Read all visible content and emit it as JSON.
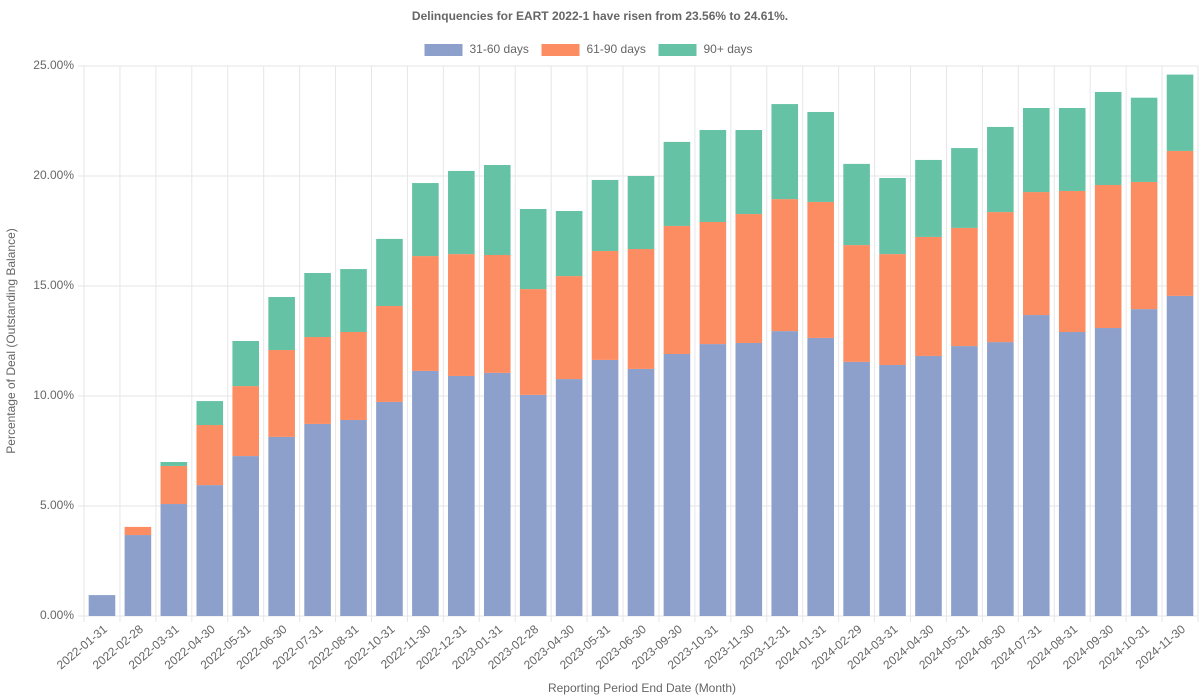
{
  "chart_data": {
    "type": "stacked_bar",
    "title": "Delinquencies for EART 2022-1 have risen from 23.56% to 24.61%.",
    "x_label": "Reporting Period End Date (Month)",
    "y_label": "Percentage of Deal (Outstanding Balance)",
    "categories": [
      "2022-01-31",
      "2022-02-28",
      "2022-03-31",
      "2022-04-30",
      "2022-05-31",
      "2022-06-30",
      "2022-07-31",
      "2022-08-31",
      "2022-10-31",
      "2022-11-30",
      "2022-12-31",
      "2023-01-31",
      "2023-02-28",
      "2023-04-30",
      "2023-05-31",
      "2023-06-30",
      "2023-09-30",
      "2023-10-31",
      "2023-11-30",
      "2023-12-31",
      "2024-01-31",
      "2024-02-29",
      "2024-03-31",
      "2024-04-30",
      "2024-05-31",
      "2024-06-30",
      "2024-07-31",
      "2024-08-31",
      "2024-09-30",
      "2024-10-31",
      "2024-11-30"
    ],
    "series": [
      {
        "name": "31-60 days",
        "color": "#8da0cb",
        "values": [
          0.95,
          3.68,
          5.09,
          5.95,
          7.27,
          8.14,
          8.73,
          8.91,
          9.73,
          11.14,
          10.91,
          11.05,
          10.05,
          10.77,
          11.64,
          11.23,
          11.91,
          12.36,
          12.41,
          12.95,
          12.64,
          11.55,
          11.41,
          11.82,
          12.27,
          12.45,
          13.68,
          12.91,
          13.09,
          13.95,
          14.55
        ]
      },
      {
        "name": "61-90 days",
        "color": "#fc8d62",
        "values": [
          0,
          0.37,
          1.73,
          2.73,
          3.18,
          3.95,
          3.95,
          4.0,
          4.36,
          5.22,
          5.54,
          5.36,
          4.81,
          4.68,
          4.95,
          5.45,
          5.82,
          5.55,
          5.86,
          6.0,
          6.18,
          5.31,
          5.04,
          5.41,
          5.37,
          5.91,
          5.59,
          6.41,
          6.5,
          5.78,
          6.59
        ]
      },
      {
        "name": "90+ days",
        "color": "#66c2a5",
        "values": [
          0,
          0,
          0.18,
          1.09,
          2.05,
          2.41,
          2.91,
          2.86,
          3.05,
          3.32,
          3.78,
          4.09,
          3.64,
          2.96,
          3.23,
          3.32,
          3.82,
          4.18,
          3.82,
          4.32,
          4.09,
          3.69,
          3.46,
          3.5,
          3.63,
          3.87,
          3.82,
          3.77,
          4.23,
          3.83,
          3.47
        ]
      }
    ],
    "ylim": [
      0,
      25
    ],
    "yticks": [
      {
        "value": 0,
        "label": "0.00%"
      },
      {
        "value": 5,
        "label": "5.00%"
      },
      {
        "value": 10,
        "label": "10.00%"
      },
      {
        "value": 15,
        "label": "15.00%"
      },
      {
        "value": 20,
        "label": "20.00%"
      },
      {
        "value": 25,
        "label": "25.00%"
      }
    ],
    "grid": true,
    "legend": "top"
  }
}
